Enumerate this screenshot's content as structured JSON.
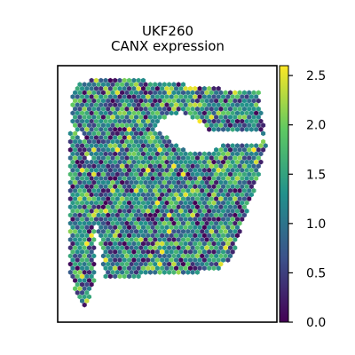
{
  "chart_data": {
    "type": "scatter",
    "title_line1": "UKF260",
    "title_line2": "CANX expression",
    "xlabel": "",
    "ylabel": "",
    "axis_ticks_visible": false,
    "grid": false,
    "point_shape": "hexagon",
    "colormap": "viridis",
    "colormap_stops": [
      "#440154",
      "#3b528b",
      "#21918c",
      "#5ec962",
      "#fde725"
    ],
    "colorbar": {
      "vmin": 0.0,
      "vmax": 2.6,
      "ticks": [
        0.0,
        0.5,
        1.0,
        1.5,
        2.0,
        2.5
      ],
      "tick_labels": [
        "0.0",
        "0.5",
        "1.0",
        "1.5",
        "2.0",
        "2.5"
      ]
    },
    "value_range": [
      0.0,
      2.6
    ],
    "typical_value": 1.2
  }
}
